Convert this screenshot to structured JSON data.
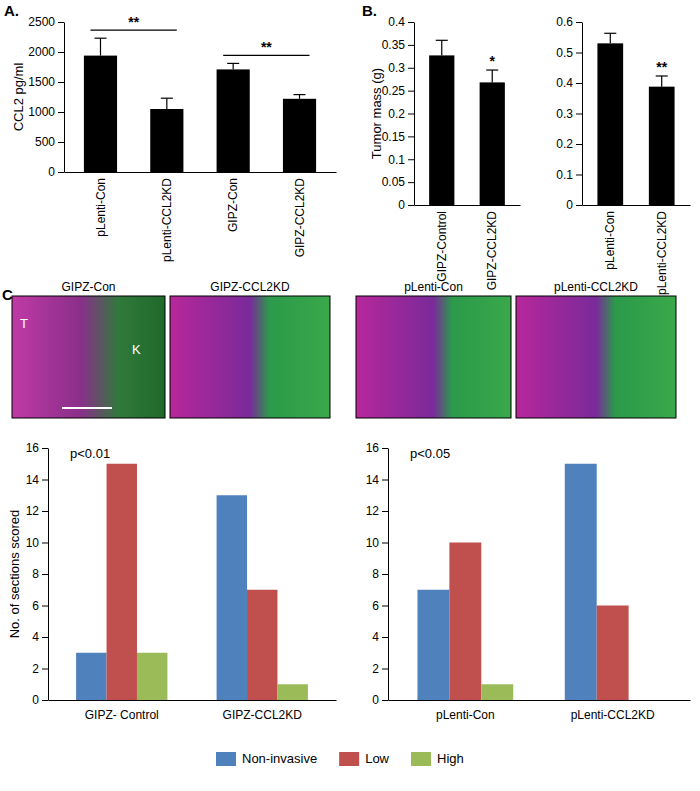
{
  "chart_data": [
    {
      "type": "bar",
      "title": "A.",
      "y_label": "CCL2 pg/ml",
      "categories": [
        "pLenti-Con",
        "pLenti-CCL2KD",
        "GIPZ-Con",
        "GIPZ-CCL2KD"
      ],
      "values": [
        1940,
        1050,
        1710,
        1220
      ],
      "errors": [
        290,
        180,
        100,
        70
      ],
      "color": "#000000",
      "ylim": [
        0,
        2500
      ],
      "yticks": [
        0,
        500,
        1000,
        1500,
        2000,
        2500
      ],
      "annotations": [
        {
          "text": "**",
          "span": [
            "pLenti-Con",
            "pLenti-CCL2KD"
          ]
        },
        {
          "text": "**",
          "span": [
            "GIPZ-Con",
            "GIPZ-CCL2KD"
          ]
        }
      ]
    },
    {
      "type": "bar",
      "title": "B.",
      "y_label": "Tumor mass (g)",
      "categories": [
        "GIPZ-Control",
        "GIPZ-CCL2KD"
      ],
      "values": [
        0.327,
        0.268
      ],
      "errors": [
        0.033,
        0.027
      ],
      "color": "#000000",
      "ylim": [
        0,
        0.4
      ],
      "yticks": [
        0,
        0.05,
        0.1,
        0.15,
        0.2,
        0.25,
        0.3,
        0.35,
        0.4
      ],
      "annotations": [
        {
          "text": "*",
          "category": "GIPZ-CCL2KD"
        }
      ]
    },
    {
      "type": "bar",
      "categories": [
        "pLenti-Con",
        "pLenti-CCL2KD"
      ],
      "values": [
        0.53,
        0.388
      ],
      "errors": [
        0.033,
        0.035
      ],
      "color": "#000000",
      "ylim": [
        0,
        0.6
      ],
      "yticks": [
        0,
        0.1,
        0.2,
        0.3,
        0.4,
        0.5,
        0.6
      ],
      "annotations": [
        {
          "text": "**",
          "category": "pLenti-CCL2KD"
        }
      ]
    },
    {
      "type": "image",
      "title": "C.",
      "label": "GIPZ-Con",
      "annotations": [
        {
          "text": "T"
        },
        {
          "text": "K"
        }
      ]
    },
    {
      "type": "image",
      "label": "GIPZ-CCL2KD"
    },
    {
      "type": "image",
      "label": "pLenti-Con"
    },
    {
      "type": "image",
      "label": "pLenti-CCL2KD"
    },
    {
      "type": "bar",
      "y_label": "No. of sections scored",
      "categories": [
        "GIPZ- Control",
        "GIPZ-CCL2KD"
      ],
      "series": [
        {
          "name": "Non-invasive",
          "color": "#4f81bd",
          "values": [
            3,
            13
          ]
        },
        {
          "name": "Low",
          "color": "#c0504d",
          "values": [
            15,
            7
          ]
        },
        {
          "name": "High",
          "color": "#9bbb59",
          "values": [
            3,
            1
          ]
        }
      ],
      "ylim": [
        0,
        16
      ],
      "yticks": [
        0,
        2,
        4,
        6,
        8,
        10,
        12,
        14,
        16
      ],
      "legend": "bottom",
      "annotations": [
        {
          "text": "p<0.01"
        }
      ]
    },
    {
      "type": "bar",
      "categories": [
        "pLenti-Con",
        "pLenti-CCL2KD"
      ],
      "series": [
        {
          "name": "Non-invasive",
          "color": "#4f81bd",
          "values": [
            7,
            15
          ]
        },
        {
          "name": "Low",
          "color": "#c0504d",
          "values": [
            10,
            6
          ]
        },
        {
          "name": "High",
          "color": "#9bbb59",
          "values": [
            1,
            0
          ]
        }
      ],
      "ylim": [
        0,
        16
      ],
      "yticks": [
        0,
        2,
        4,
        6,
        8,
        10,
        12,
        14,
        16
      ],
      "annotations": [
        {
          "text": "p<0.05"
        }
      ]
    }
  ]
}
